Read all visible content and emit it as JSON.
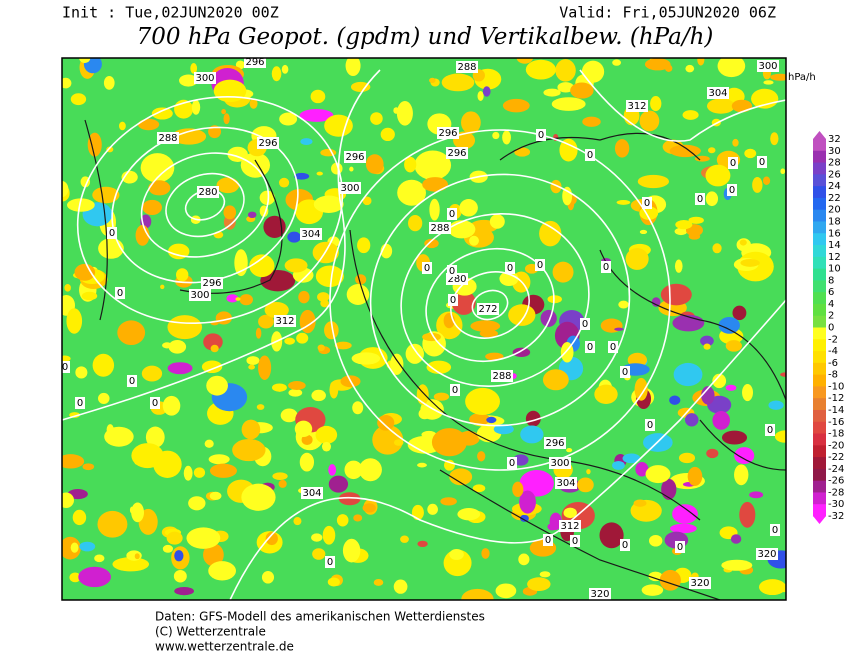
{
  "header": {
    "init": "Init : Tue,02JUN2020 00Z",
    "valid": "Valid: Fri,05JUN2020 06Z",
    "title": "700 hPa Geopot. (gpdm) und Vertikalbew. (hPa/h)"
  },
  "map": {
    "contour_labels": [
      300,
      296,
      288,
      300,
      304,
      312,
      288,
      296,
      296,
      296,
      296,
      300,
      280,
      304,
      288,
      280,
      272,
      296,
      300,
      312,
      288,
      296,
      300,
      304,
      304,
      312,
      320,
      320,
      320,
      0,
      0,
      0,
      0,
      0,
      0,
      0,
      0,
      0,
      0,
      0,
      0,
      0,
      0,
      0,
      0,
      0,
      0,
      0,
      0,
      0,
      0,
      0,
      0,
      0,
      0,
      0,
      0,
      0,
      0,
      0,
      0,
      0,
      0
    ],
    "colorbar": {
      "unit": "hPa/h",
      "levels": [
        32,
        30,
        28,
        26,
        24,
        22,
        20,
        18,
        16,
        14,
        12,
        10,
        8,
        6,
        4,
        2,
        0,
        -2,
        -4,
        -6,
        -8,
        -10,
        -12,
        -14,
        -16,
        -18,
        -20,
        -22,
        -24,
        -26,
        -28,
        -30,
        -32
      ],
      "colors": [
        "#c050c0",
        "#9a30b0",
        "#7a40c8",
        "#5a50d8",
        "#3050e8",
        "#2468f0",
        "#2a88f0",
        "#30a8f0",
        "#30c8f0",
        "#30d8d8",
        "#30e0b8",
        "#30e090",
        "#40e070",
        "#50e050",
        "#60e040",
        "#78e040",
        "#ffff20",
        "#fff000",
        "#ffe000",
        "#ffc800",
        "#ffb000",
        "#f89820",
        "#e88030",
        "#e06040",
        "#e04840",
        "#d83040",
        "#c02030",
        "#a01838",
        "#901848",
        "#a02090",
        "#d020d0",
        "#ff20ff"
      ]
    }
  },
  "footer": [
    "Daten: GFS-Modell des amerikanischen Wetterdienstes",
    "(C) Wetterzentrale",
    "www.wetterzentrale.de"
  ]
}
